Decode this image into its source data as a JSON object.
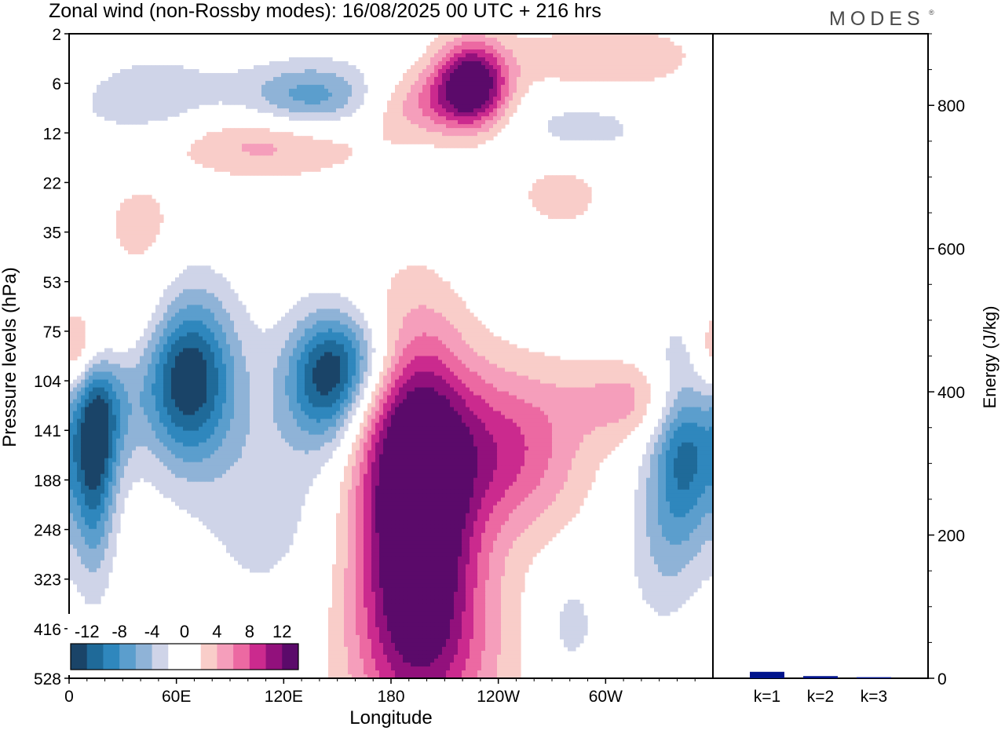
{
  "header": {
    "title": "Zonal wind (non-Rossby modes):  16/08/2025  00 UTC  + 216 hrs",
    "brand": "MODES",
    "brand_mark": "®"
  },
  "colors": {
    "neg": [
      "#1a4468",
      "#1f6a99",
      "#2f87bd",
      "#5b9ecd",
      "#8fb3d7",
      "#cfd4e8"
    ],
    "zero": "#ffffff",
    "pos": [
      "#f9cdc9",
      "#f59ebb",
      "#ec69a2",
      "#cb2a8e",
      "#92117c",
      "#5b0a6a"
    ],
    "bar": "#00148c"
  },
  "chart_data": [
    {
      "type": "heatmap",
      "title": "Zonal wind (non-Rossby modes)",
      "xlabel": "Longitude",
      "ylabel": "Pressure levels (hPa)",
      "x_ticks": [
        "0",
        "60E",
        "120E",
        "180",
        "120W",
        "60W"
      ],
      "x_tick_degrees": [
        0,
        60,
        120,
        180,
        240,
        300
      ],
      "x_range_degrees": [
        0,
        360
      ],
      "y_ticks": [
        "2",
        "6",
        "12",
        "22",
        "35",
        "53",
        "75",
        "104",
        "141",
        "188",
        "248",
        "323",
        "416",
        "528"
      ],
      "colorbar": {
        "tick_labels": [
          "-12",
          "-8",
          "-4",
          "0",
          "4",
          "8",
          "12"
        ],
        "levels": [
          -14,
          -12,
          -10,
          -8,
          -6,
          -4,
          -2,
          2,
          4,
          6,
          8,
          10,
          12,
          14
        ]
      },
      "features": [
        {
          "lon": 66,
          "level": 6.9,
          "value": -14,
          "sx": 18,
          "sy": 1.2
        },
        {
          "lon": 14,
          "level": 8.6,
          "value": -10,
          "sx": 8,
          "sy": 1.6
        },
        {
          "lon": 20,
          "level": 7.6,
          "value": -7,
          "sx": 12,
          "sy": 1.0
        },
        {
          "lon": 144,
          "level": 7.0,
          "value": -11,
          "sx": 16,
          "sy": 0.9
        },
        {
          "lon": 162,
          "level": 6.5,
          "value": -5,
          "sx": 18,
          "sy": 0.7
        },
        {
          "lon": 345,
          "level": 8.3,
          "value": -11,
          "sx": 14,
          "sy": 1.4
        },
        {
          "lon": 110,
          "level": 9.2,
          "value": -3,
          "sx": 30,
          "sy": 2.0
        },
        {
          "lon": 192,
          "level": 8.6,
          "value": 13,
          "sx": 22,
          "sy": 2.0
        },
        {
          "lon": 196,
          "level": 11.0,
          "value": 8,
          "sx": 24,
          "sy": 2.2
        },
        {
          "lon": 245,
          "level": 8.4,
          "value": 8,
          "sx": 30,
          "sy": 1.2
        },
        {
          "lon": 200,
          "level": 12.5,
          "value": 5,
          "sx": 36,
          "sy": 1.5
        },
        {
          "lon": 320,
          "level": 7.4,
          "value": 5,
          "sx": 28,
          "sy": 0.6
        },
        {
          "lon": 6,
          "level": 6.4,
          "value": 7,
          "sx": 12,
          "sy": 0.6
        },
        {
          "lon": 40,
          "level": 5.7,
          "value": 3,
          "sx": 20,
          "sy": 0.8
        },
        {
          "lon": 225,
          "level": 1.0,
          "value": 14,
          "sx": 14,
          "sy": 0.6
        },
        {
          "lon": 195,
          "level": 1.4,
          "value": 6,
          "sx": 28,
          "sy": 0.5
        },
        {
          "lon": 140,
          "level": 1.3,
          "value": -8,
          "sx": 30,
          "sy": 0.5
        },
        {
          "lon": 45,
          "level": 1.3,
          "value": -4,
          "sx": 30,
          "sy": 0.6
        },
        {
          "lon": 110,
          "level": 2.2,
          "value": 5,
          "sx": 40,
          "sy": 0.5
        },
        {
          "lon": 300,
          "level": 0.5,
          "value": 4,
          "sx": 40,
          "sy": 0.5
        },
        {
          "lon": 285,
          "level": 1.9,
          "value": -3,
          "sx": 30,
          "sy": 0.5
        },
        {
          "lon": 275,
          "level": 3.2,
          "value": 3,
          "sx": 20,
          "sy": 0.6
        },
        {
          "lon": 40,
          "level": 3.8,
          "value": 3,
          "sx": 15,
          "sy": 0.6
        },
        {
          "lon": 330,
          "level": 10.4,
          "value": -3,
          "sx": 14,
          "sy": 1.2
        },
        {
          "lon": 280,
          "level": 11.9,
          "value": -3,
          "sx": 12,
          "sy": 0.8
        }
      ]
    },
    {
      "type": "bar",
      "ylabel": "Energy (J/kg)",
      "categories": [
        "k=1",
        "k=2",
        "k=3"
      ],
      "values": [
        9,
        3,
        1.5
      ],
      "ylim": [
        0,
        900
      ],
      "y_ticks": [
        0,
        200,
        400,
        600,
        800
      ]
    }
  ]
}
